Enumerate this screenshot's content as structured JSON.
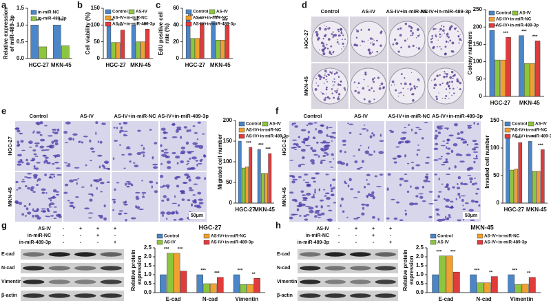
{
  "panel_letters": [
    "a",
    "b",
    "c",
    "d",
    "e",
    "f",
    "g",
    "h"
  ],
  "chart_data": [
    {
      "type": "bar",
      "ylabel": [
        "Relative expression",
        "of miR-489-3p"
      ],
      "categories": [
        "HGC-27",
        "MKN-45"
      ],
      "series": [
        {
          "name": "in-miR-NC",
          "color": "#4a86c8",
          "values": [
            1.0,
            1.0
          ]
        },
        {
          "name": "in-miR-489-3p",
          "color": "#8cc63e",
          "values": [
            0.35,
            0.38
          ]
        }
      ],
      "ylim": [
        0,
        1.5
      ],
      "yticks": [
        {
          "value": 0,
          "label": "0.0"
        },
        0.5,
        {
          "value": 1,
          "label": "1.0"
        },
        1.5
      ],
      "annotations": [
        [
          "***"
        ],
        [
          "***"
        ]
      ]
    },
    {
      "type": "bar",
      "ylabel": [
        "Cell viability (%)"
      ],
      "categories": [
        "HGC-27",
        "MKN-45"
      ],
      "series": [
        {
          "name": "Control",
          "color": "#4a86c8",
          "values": [
            100,
            100
          ]
        },
        {
          "name": "AS-IV",
          "color": "#8cc63e",
          "values": [
            48,
            50
          ]
        },
        {
          "name": "AS-IV+in-miR-NC",
          "color": "#f0a030",
          "values": [
            48,
            50
          ]
        },
        {
          "name": "AS-IV+in-miR-489-3p",
          "color": "#e03c3c",
          "values": [
            85,
            88
          ]
        }
      ],
      "ylim": [
        0,
        150
      ],
      "yticks": [
        0,
        50,
        100,
        150
      ],
      "annotations": [
        [
          "***",
          "***"
        ],
        [
          "***",
          "**"
        ]
      ]
    },
    {
      "type": "bar",
      "ylabel": [
        "EdU positive cell",
        "rate (%)"
      ],
      "categories": [
        "HGC-27",
        "MKN-45"
      ],
      "series": [
        {
          "name": "Control",
          "color": "#4a86c8",
          "values": [
            46,
            44
          ]
        },
        {
          "name": "AS-IV",
          "color": "#8cc63e",
          "values": [
            24,
            22
          ]
        },
        {
          "name": "AS-IV+in-miR-NC",
          "color": "#f0a030",
          "values": [
            24,
            22
          ]
        },
        {
          "name": "AS-IV+in-miR-489-3p",
          "color": "#e03c3c",
          "values": [
            42,
            40
          ]
        }
      ],
      "ylim": [
        0,
        60
      ],
      "yticks": [
        0,
        20,
        40,
        60
      ],
      "annotations": [
        [
          "***",
          "***"
        ],
        [
          "***",
          "***"
        ]
      ]
    },
    {
      "type": "bar",
      "ylabel": [
        "Colony numbers"
      ],
      "categories": [
        "HGC-27",
        "MKN-45"
      ],
      "series": [
        {
          "name": "Control",
          "color": "#4a86c8",
          "values": [
            190,
            175
          ]
        },
        {
          "name": "AS-IV",
          "color": "#8cc63e",
          "values": [
            105,
            95
          ]
        },
        {
          "name": "AS-IV+in-miR-NC",
          "color": "#f0a030",
          "values": [
            105,
            95
          ]
        },
        {
          "name": "AS-IV+in-miR-489-3p",
          "color": "#e03c3c",
          "values": [
            170,
            160
          ]
        }
      ],
      "ylim": [
        0,
        250
      ],
      "yticks": [
        0,
        50,
        100,
        150,
        200,
        250
      ],
      "annotations": [
        [
          "***",
          "***"
        ],
        [
          "***",
          "***"
        ]
      ]
    },
    {
      "type": "bar",
      "ylabel": [
        "Migrated cell number"
      ],
      "categories": [
        "HGC-27",
        "MKN-45"
      ],
      "series": [
        {
          "name": "Control",
          "color": "#4a86c8",
          "values": [
            150,
            130
          ]
        },
        {
          "name": "AS-IV",
          "color": "#8cc63e",
          "values": [
            85,
            72
          ]
        },
        {
          "name": "AS-IV+in-miR-NC",
          "color": "#f0a030",
          "values": [
            88,
            72
          ]
        },
        {
          "name": "AS-IV+in-miR-489-3p",
          "color": "#e03c3c",
          "values": [
            135,
            120
          ]
        }
      ],
      "ylim": [
        0,
        200
      ],
      "yticks": [
        0,
        50,
        100,
        150,
        200
      ],
      "annotations": [
        [
          "***",
          "***"
        ],
        [
          "***",
          "***"
        ]
      ]
    },
    {
      "type": "bar",
      "ylabel": [
        "Invaded cell number"
      ],
      "categories": [
        "HGC-27",
        "MKN-45"
      ],
      "series": [
        {
          "name": "Control",
          "color": "#4a86c8",
          "values": [
            125,
            112
          ]
        },
        {
          "name": "AS-IV",
          "color": "#8cc63e",
          "values": [
            60,
            58
          ]
        },
        {
          "name": "AS-IV+in-miR-NC",
          "color": "#f0a030",
          "values": [
            62,
            58
          ]
        },
        {
          "name": "AS-IV+in-miR-489-3p",
          "color": "#e03c3c",
          "values": [
            110,
            97
          ]
        }
      ],
      "ylim": [
        0,
        150
      ],
      "yticks": [
        0,
        50,
        100,
        150
      ],
      "annotations": [
        [
          "***",
          "***"
        ],
        [
          "***",
          "***"
        ]
      ]
    },
    {
      "type": "bar",
      "title": "HGC-27",
      "ylabel": [
        "Relative protein",
        "expression"
      ],
      "categories": [
        "E-cad",
        "N-cad",
        "Vimentin"
      ],
      "series": [
        {
          "name": "Control",
          "color": "#4a86c8",
          "values": [
            1.0,
            1.0,
            1.0
          ]
        },
        {
          "name": "AS-IV",
          "color": "#8cc63e",
          "values": [
            2.2,
            0.5,
            0.45
          ]
        },
        {
          "name": "AS-IV+in-miR-NC",
          "color": "#f0a030",
          "values": [
            2.2,
            0.5,
            0.45
          ]
        },
        {
          "name": "AS-IV+in-miR-489-3p",
          "color": "#e03c3c",
          "values": [
            1.2,
            0.85,
            0.8
          ]
        }
      ],
      "ylim": [
        0,
        2.5
      ],
      "yticks": [
        {
          "value": 0,
          "label": "0.0"
        },
        0.5,
        {
          "value": 1,
          "label": "1.0"
        },
        1.5,
        {
          "value": 2,
          "label": "2.0"
        },
        2.5
      ],
      "annotations": [
        [
          "***",
          "***"
        ],
        [
          "***",
          "***"
        ],
        [
          "***",
          "**"
        ]
      ]
    },
    {
      "type": "bar",
      "title": "MKN-45",
      "ylabel": [
        "Relative protein",
        "expression"
      ],
      "categories": [
        "E-cad",
        "N-cad",
        "Vimentin"
      ],
      "series": [
        {
          "name": "Control",
          "color": "#4a86c8",
          "values": [
            1.0,
            1.0,
            1.0
          ]
        },
        {
          "name": "AS-IV",
          "color": "#8cc63e",
          "values": [
            2.05,
            0.55,
            0.45
          ]
        },
        {
          "name": "AS-IV+in-miR-NC",
          "color": "#f0a030",
          "values": [
            2.05,
            0.55,
            0.48
          ]
        },
        {
          "name": "AS-IV+in-miR-489-3p",
          "color": "#e03c3c",
          "values": [
            1.15,
            0.9,
            0.85
          ]
        }
      ],
      "ylim": [
        0,
        2.5
      ],
      "yticks": [
        {
          "value": 0,
          "label": "0.0"
        },
        0.5,
        {
          "value": 1,
          "label": "1.0"
        },
        1.5,
        {
          "value": 2,
          "label": "2.0"
        },
        2.5
      ],
      "annotations": [
        [
          "***",
          "***"
        ],
        [
          "***",
          "**"
        ],
        [
          "***",
          "**"
        ]
      ]
    }
  ],
  "images": [
    {
      "columns": [
        "Control",
        "AS-IV",
        "AS-IV+in-miR-NC",
        "AS-IV+in-miR-489-3p"
      ],
      "rows": [
        "HGC-27",
        "MKN-45"
      ]
    },
    {
      "columns": [
        "Control",
        "AS-IV",
        "AS-IV+in-miR-NC",
        "AS-IV+in-miR-489-3p"
      ],
      "rows": [
        "HGC-27",
        "MKN-45"
      ],
      "scale": "50μm"
    },
    {
      "columns": [
        "Control",
        "AS-IV",
        "AS-IV+in-miR-NC",
        "AS-IV+in-miR-489-3p"
      ],
      "rows": [
        "HGC-27",
        "MKN-45"
      ],
      "scale": "50μm"
    }
  ],
  "blots": [
    {
      "conditions": [
        {
          "name": "AS-IV",
          "signs": [
            "-",
            "+",
            "+",
            "+"
          ]
        },
        {
          "name": "in-miR-NC",
          "signs": [
            "-",
            "-",
            "+",
            "-"
          ]
        },
        {
          "name": "in-miR-489-3p",
          "signs": [
            "-",
            "-",
            "-",
            "+"
          ]
        }
      ],
      "bands": [
        "E-cad",
        "N-cad",
        "Vimentin",
        "β-actin"
      ]
    },
    {
      "conditions": [
        {
          "name": "AS-IV",
          "signs": [
            "-",
            "+",
            "+",
            "+"
          ]
        },
        {
          "name": "in-miR-NC",
          "signs": [
            "-",
            "-",
            "+",
            "-"
          ]
        },
        {
          "name": "in-miR-489-3p",
          "signs": [
            "-",
            "-",
            "-",
            "+"
          ]
        }
      ],
      "bands": [
        "E-cad",
        "N-cad",
        "Vimentin",
        "β-actin"
      ]
    }
  ]
}
